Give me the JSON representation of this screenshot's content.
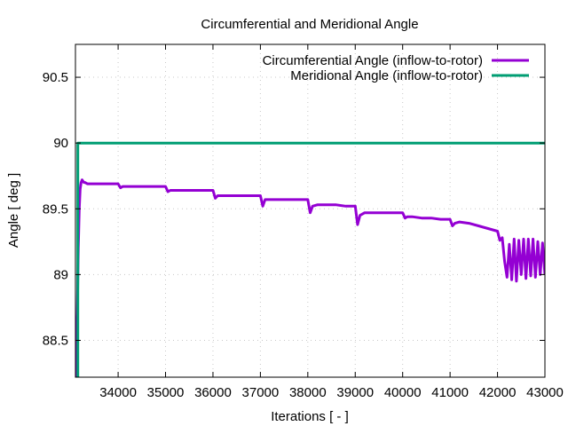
{
  "chart_data": {
    "type": "line",
    "title": "Circumferential and Meridional Angle",
    "xlabel": "Iterations [ - ]",
    "ylabel": "Angle [ deg ]",
    "xlim": [
      33100,
      43000
    ],
    "ylim": [
      88.22,
      90.75
    ],
    "xticks": [
      34000,
      35000,
      36000,
      37000,
      38000,
      39000,
      40000,
      41000,
      42000,
      43000
    ],
    "yticks": [
      88.5,
      89,
      89.5,
      90,
      90.5
    ],
    "grid": true,
    "legend_position": "top-right",
    "series": [
      {
        "name": "Circumferential Angle (inflow-to-rotor)",
        "color": "#9400d3",
        "x": [
          33100,
          33140,
          33160,
          33180,
          33200,
          33220,
          33240,
          33260,
          33280,
          33300,
          33350,
          33400,
          33500,
          33600,
          33700,
          33800,
          33900,
          34000,
          34050,
          34100,
          34200,
          34400,
          34600,
          34800,
          35000,
          35050,
          35100,
          35200,
          35400,
          35600,
          35800,
          36000,
          36050,
          36100,
          36200,
          36400,
          36600,
          36800,
          37000,
          37050,
          37100,
          37200,
          37400,
          37600,
          37800,
          38000,
          38050,
          38100,
          38200,
          38400,
          38600,
          38800,
          39000,
          39050,
          39100,
          39200,
          39400,
          39600,
          39800,
          40000,
          40050,
          40100,
          40200,
          40400,
          40600,
          40800,
          41000,
          41050,
          41100,
          41200,
          41400,
          41600,
          41800,
          42000,
          42050,
          42100,
          42150,
          42200,
          42250,
          42300,
          42350,
          42400,
          42450,
          42500,
          42550,
          42600,
          42650,
          42700,
          42750,
          42800,
          42850,
          42900,
          42950,
          43000
        ],
        "y": [
          88.2,
          88.7,
          89.2,
          89.5,
          89.65,
          89.7,
          89.72,
          89.71,
          89.7,
          89.7,
          89.69,
          89.69,
          89.69,
          89.69,
          89.69,
          89.69,
          89.69,
          89.69,
          89.66,
          89.67,
          89.67,
          89.67,
          89.67,
          89.67,
          89.67,
          89.63,
          89.64,
          89.64,
          89.64,
          89.64,
          89.64,
          89.64,
          89.58,
          89.6,
          89.6,
          89.6,
          89.6,
          89.6,
          89.6,
          89.52,
          89.57,
          89.57,
          89.57,
          89.57,
          89.57,
          89.57,
          89.47,
          89.52,
          89.53,
          89.53,
          89.53,
          89.52,
          89.52,
          89.38,
          89.45,
          89.47,
          89.47,
          89.47,
          89.47,
          89.47,
          89.43,
          89.44,
          89.44,
          89.43,
          89.43,
          89.42,
          89.42,
          89.37,
          89.39,
          89.4,
          89.39,
          89.37,
          89.35,
          89.33,
          89.26,
          89.28,
          89.1,
          88.98,
          89.23,
          88.96,
          89.27,
          88.95,
          89.26,
          89.0,
          89.27,
          88.97,
          89.27,
          88.99,
          89.27,
          88.98,
          89.25,
          89.0,
          89.24,
          89.0
        ]
      },
      {
        "name": "Meridional Angle (inflow-to-rotor)",
        "color": "#009e73",
        "x": [
          33150,
          33150,
          33200,
          43000
        ],
        "y": [
          88.2,
          90.0,
          90.0,
          90.0
        ]
      }
    ]
  }
}
